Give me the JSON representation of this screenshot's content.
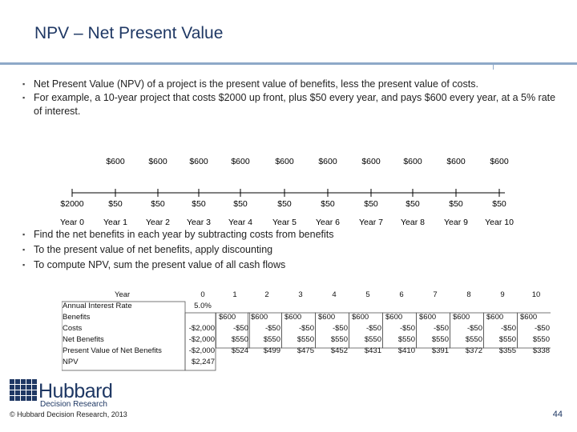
{
  "title": "NPV – Net Present Value",
  "bullets": [
    "Net Present Value (NPV) of a project is the present value of benefits, less the present value of costs.",
    "For example, a 10-year project that costs $2000 up front, plus $50 every year, and pays $600 every year, at a 5% rate of interest."
  ],
  "timeline": {
    "benefits": [
      "$600",
      "$600",
      "$600",
      "$600",
      "$600",
      "$600",
      "$600",
      "$600",
      "$600",
      "$600"
    ],
    "costs": [
      "$2000",
      "$50",
      "$50",
      "$50",
      "$50",
      "$50",
      "$50",
      "$50",
      "$50",
      "$50",
      "$50"
    ],
    "years": [
      "Year 0",
      "Year 1",
      "Year 2",
      "Year 3",
      "Year 4",
      "Year 5",
      "Year 6",
      "Year 7",
      "Year 8",
      "Year 9",
      "Year 10"
    ]
  },
  "bullets2": [
    "Find the net benefits in each year by subtracting costs from benefits",
    "To the present value of net benefits, apply discounting",
    "To compute NPV, sum the present value of all cash flows"
  ],
  "table": {
    "row_labels": [
      "Year",
      "Annual Interest Rate",
      "Benefits",
      "Costs",
      "Net Benefits",
      "Present Value of Net Benefits",
      "NPV"
    ],
    "year_headers": [
      "0",
      "1",
      "2",
      "3",
      "4",
      "5",
      "6",
      "7",
      "8",
      "9",
      "10"
    ],
    "rate": "5.0%",
    "benefits": [
      "",
      "$600",
      "$600",
      "$600",
      "$600",
      "$600",
      "$600",
      "$600",
      "$600",
      "$600",
      "$600"
    ],
    "costs": [
      "-$2,000",
      "-$50",
      "-$50",
      "-$50",
      "-$50",
      "-$50",
      "-$50",
      "-$50",
      "-$50",
      "-$50",
      "-$50"
    ],
    "net_benefits": [
      "-$2,000",
      "$550",
      "$550",
      "$550",
      "$550",
      "$550",
      "$550",
      "$550",
      "$550",
      "$550",
      "$550"
    ],
    "present_values": [
      "-$2,000",
      "$524",
      "$499",
      "$475",
      "$452",
      "$431",
      "$410",
      "$391",
      "$372",
      "$355",
      "$338"
    ],
    "npv": "$2,247"
  },
  "footer": {
    "copyright": "© Hubbard Decision Research, 2013",
    "logo_main": "Hubbard",
    "logo_sub": "Decision Research",
    "page_number": "44"
  }
}
